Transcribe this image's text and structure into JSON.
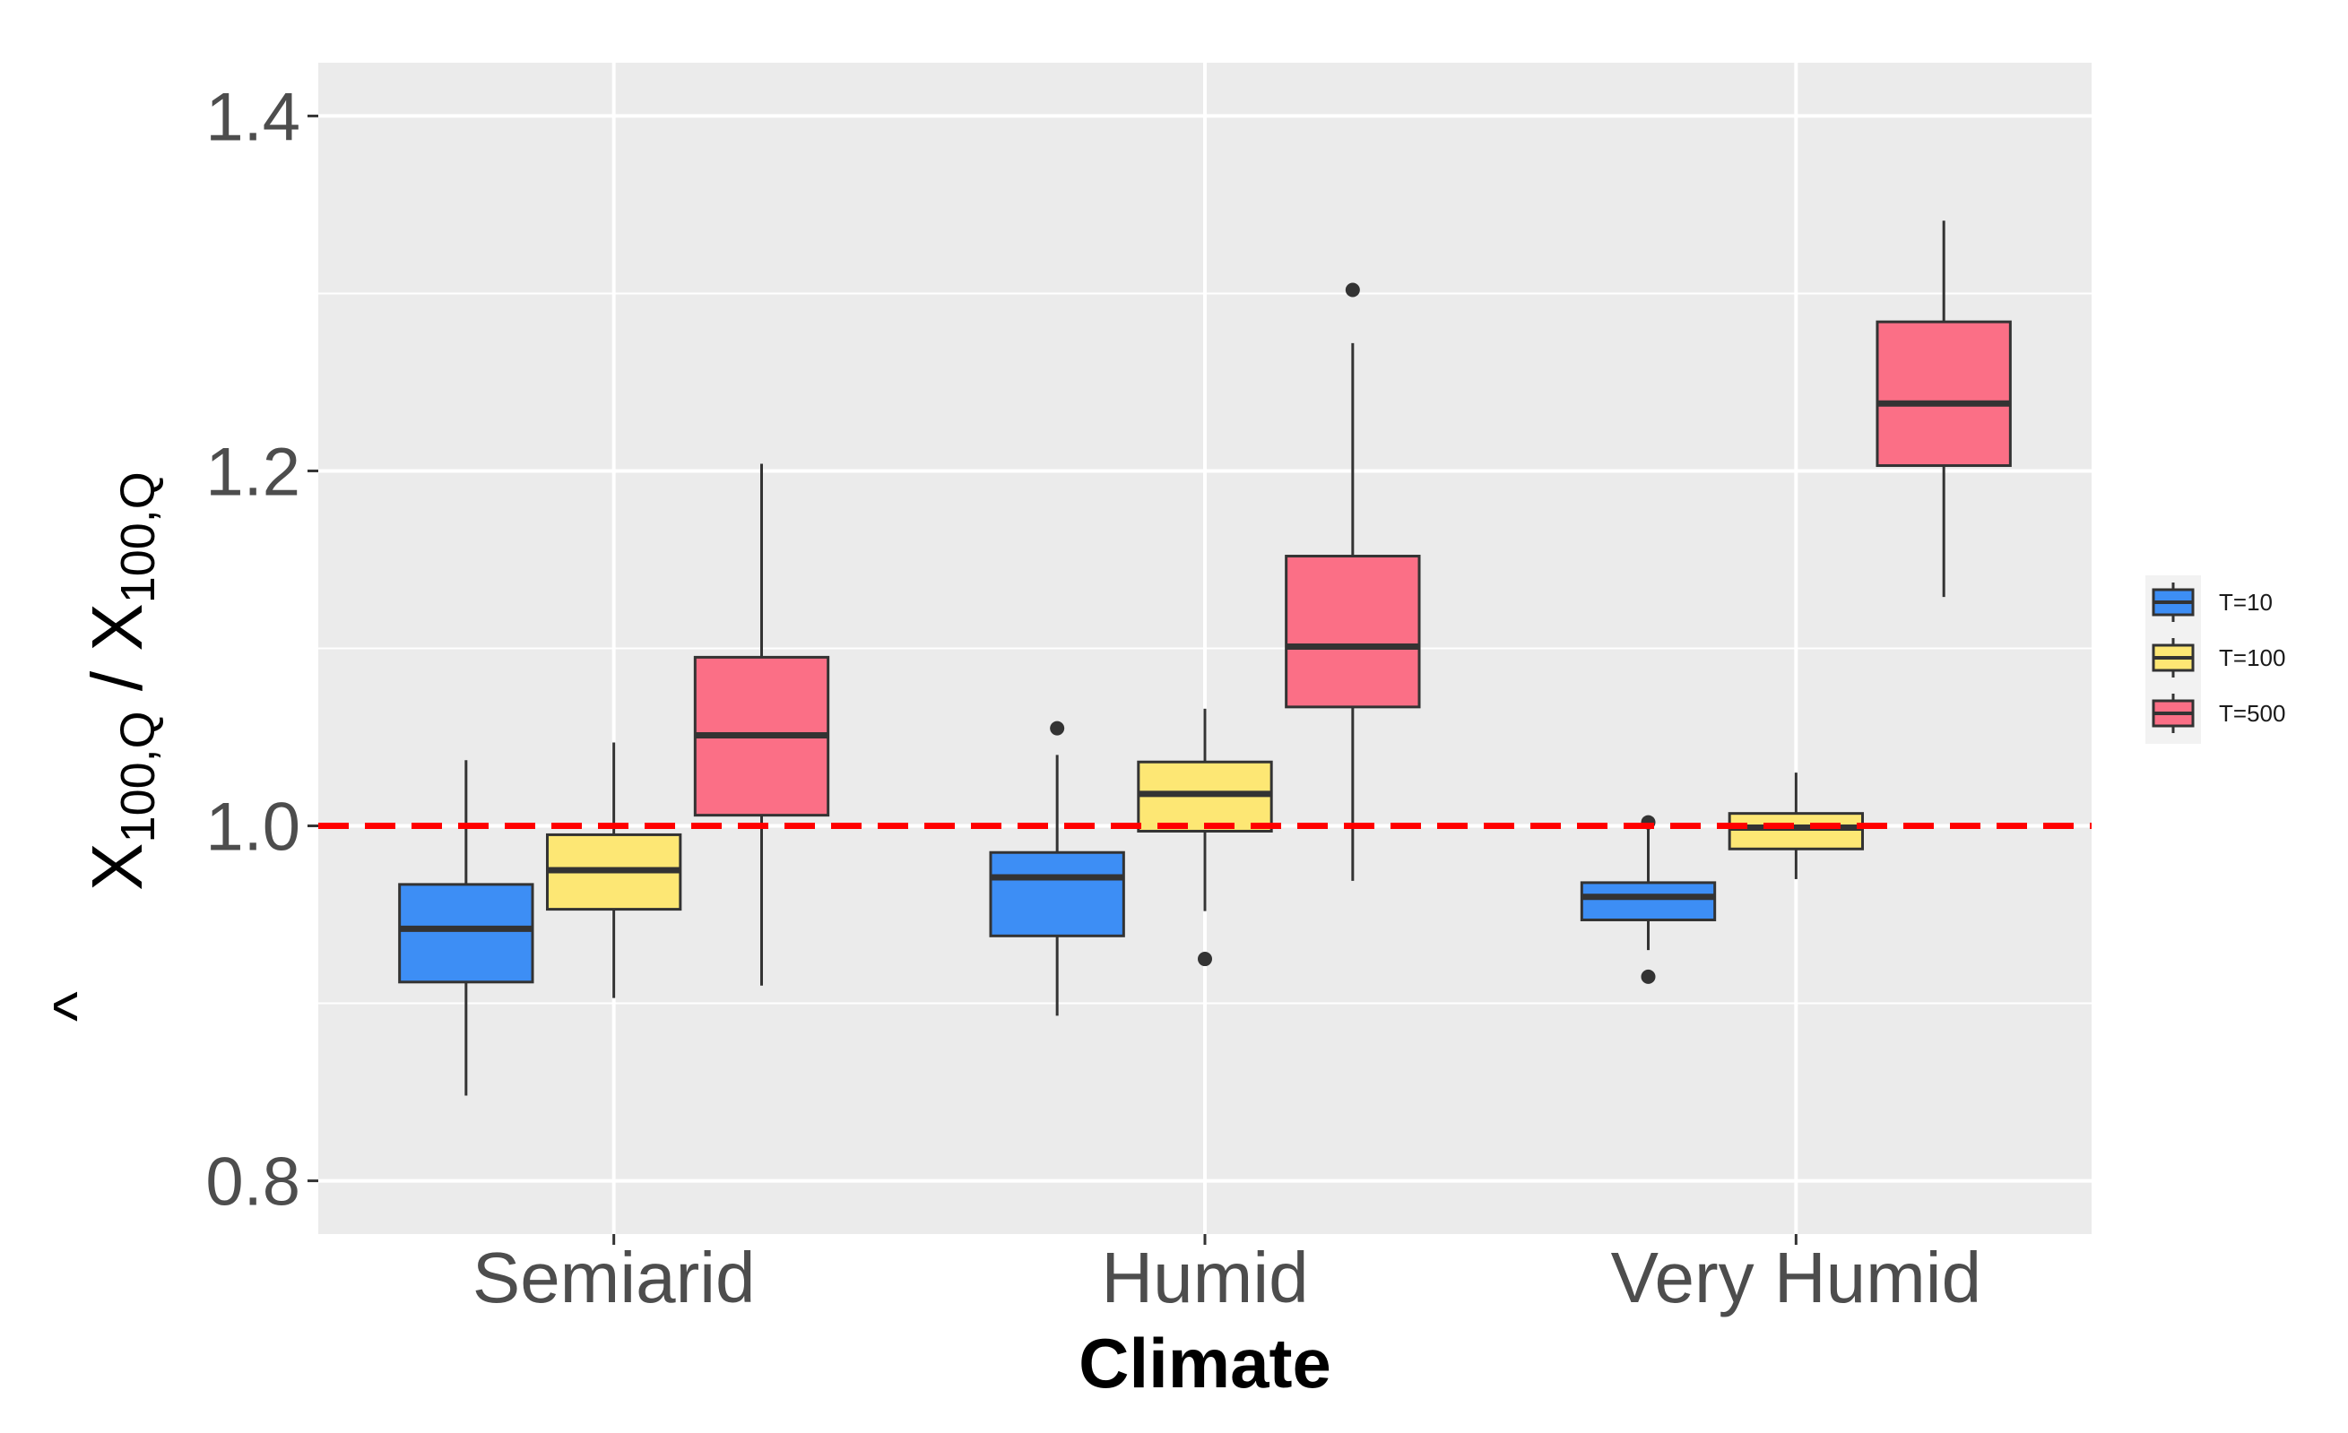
{
  "chart_data": {
    "type": "boxplot",
    "title": "",
    "xlabel": "Climate",
    "ylabel": {
      "main": "X",
      "sub": "100,Q",
      "separator": " / ",
      "hat": "^"
    },
    "ylim": [
      0.77,
      1.43
    ],
    "yticks": [
      0.8,
      1.0,
      1.2,
      1.4
    ],
    "ytick_labels": [
      "0.8",
      "1.0",
      "1.2",
      "1.4"
    ],
    "categories": [
      "Semiarid",
      "Humid",
      "Very Humid"
    ],
    "reference_line": {
      "y": 1.0,
      "color": "#ff0000",
      "style": "dashed"
    },
    "panel_background": "#ebebeb",
    "grid": true,
    "series": [
      {
        "name": "T=10",
        "color": "#3d8ef5",
        "boxes": [
          {
            "category": "Semiarid",
            "whisker_low": 0.848,
            "q1": 0.912,
            "median": 0.942,
            "q3": 0.967,
            "whisker_high": 1.037,
            "outliers": []
          },
          {
            "category": "Humid",
            "whisker_low": 0.893,
            "q1": 0.938,
            "median": 0.971,
            "q3": 0.985,
            "whisker_high": 1.04,
            "outliers": [
              1.055
            ]
          },
          {
            "category": "Very Humid",
            "whisker_low": 0.93,
            "q1": 0.947,
            "median": 0.96,
            "q3": 0.968,
            "whisker_high": 0.998,
            "outliers": [
              1.002,
              0.915
            ]
          }
        ]
      },
      {
        "name": "T=100",
        "color": "#fde774",
        "boxes": [
          {
            "category": "Semiarid",
            "whisker_low": 0.903,
            "q1": 0.953,
            "median": 0.975,
            "q3": 0.995,
            "whisker_high": 1.047,
            "outliers": []
          },
          {
            "category": "Humid",
            "whisker_low": 0.952,
            "q1": 0.997,
            "median": 1.018,
            "q3": 1.036,
            "whisker_high": 1.066,
            "outliers": [
              0.925
            ]
          },
          {
            "category": "Very Humid",
            "whisker_low": 0.97,
            "q1": 0.987,
            "median": 0.999,
            "q3": 1.007,
            "whisker_high": 1.03,
            "outliers": []
          }
        ]
      },
      {
        "name": "T=500",
        "color": "#fb6f86",
        "boxes": [
          {
            "category": "Semiarid",
            "whisker_low": 0.91,
            "q1": 1.006,
            "median": 1.051,
            "q3": 1.095,
            "whisker_high": 1.204,
            "outliers": []
          },
          {
            "category": "Humid",
            "whisker_low": 0.969,
            "q1": 1.067,
            "median": 1.101,
            "q3": 1.152,
            "whisker_high": 1.272,
            "outliers": [
              1.302
            ]
          },
          {
            "category": "Very Humid",
            "whisker_low": 1.129,
            "q1": 1.203,
            "median": 1.238,
            "q3": 1.284,
            "whisker_high": 1.341,
            "outliers": []
          }
        ]
      }
    ],
    "legend": {
      "position": "right",
      "entries": [
        "T=10",
        "T=100",
        "T=500"
      ]
    }
  }
}
